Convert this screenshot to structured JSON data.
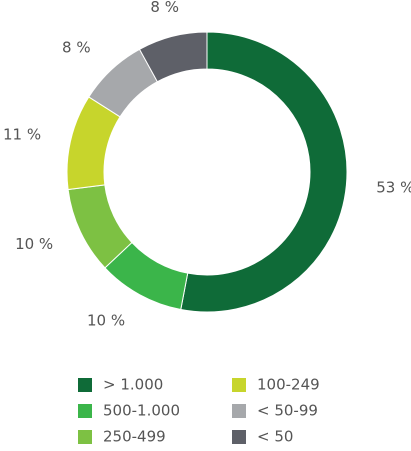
{
  "chart_data": {
    "type": "donut",
    "categories": [
      "> 1.000",
      "500-1.000",
      "250-499",
      "100-249",
      "< 50-99",
      "< 50"
    ],
    "values": [
      53,
      10,
      10,
      11,
      8,
      8
    ],
    "value_labels": [
      "53 %",
      "10 %",
      "10 %",
      "11 %",
      "8 %",
      "8 %"
    ],
    "colors": [
      "#0f6b38",
      "#3bb54a",
      "#7dc143",
      "#c7d52c",
      "#a6a8ab",
      "#5e6068"
    ]
  }
}
